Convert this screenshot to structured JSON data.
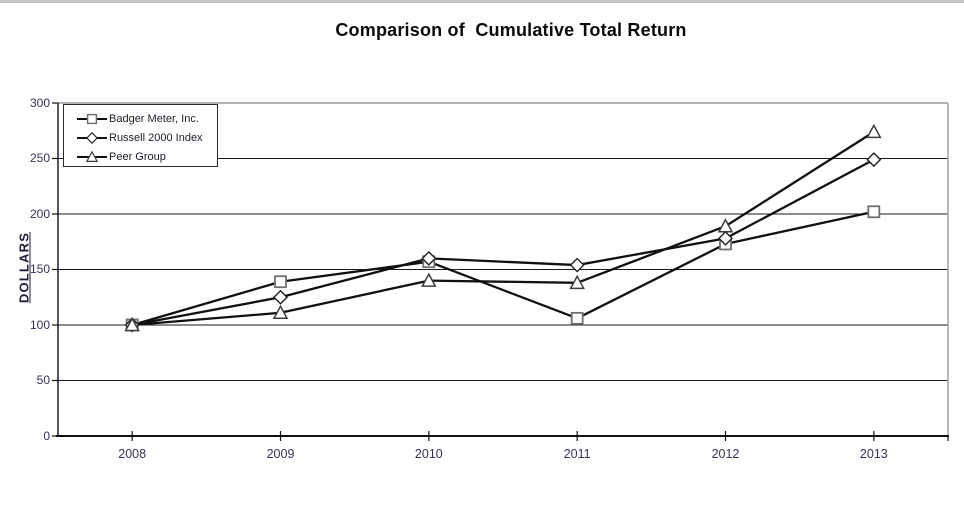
{
  "chart_data": {
    "type": "line",
    "title": "Comparison of  Cumulative Total Return",
    "ylabel": "DOLLARS",
    "categories": [
      "2008",
      "2009",
      "2010",
      "2011",
      "2012",
      "2013"
    ],
    "series": [
      {
        "name": "Badger Meter, Inc.",
        "marker": "square",
        "values": [
          100,
          139,
          157,
          106,
          173,
          202
        ]
      },
      {
        "name": "Russell 2000 Index",
        "marker": "diamond",
        "values": [
          100,
          125,
          160,
          154,
          178,
          249
        ]
      },
      {
        "name": "Peer Group",
        "marker": "triangle",
        "values": [
          100,
          111,
          140,
          138,
          189,
          274
        ]
      }
    ],
    "ylim": [
      0,
      300
    ],
    "yticks": [
      0,
      50,
      100,
      150,
      200,
      250,
      300
    ],
    "grid": true,
    "legend_position": "top-left",
    "colors": {
      "line": "#111111",
      "gridline": "#1a1a1a",
      "axis_black": "#111111",
      "border_gray": "#9a9a9a",
      "tick_text": "#3a3054",
      "title_text": "#0a0a0a",
      "marker_fill": "#ffffff",
      "square_stroke": "#6f6f6f",
      "diamond_stroke": "#1f1f1f",
      "triangle_stroke": "#3d3d3d"
    }
  }
}
